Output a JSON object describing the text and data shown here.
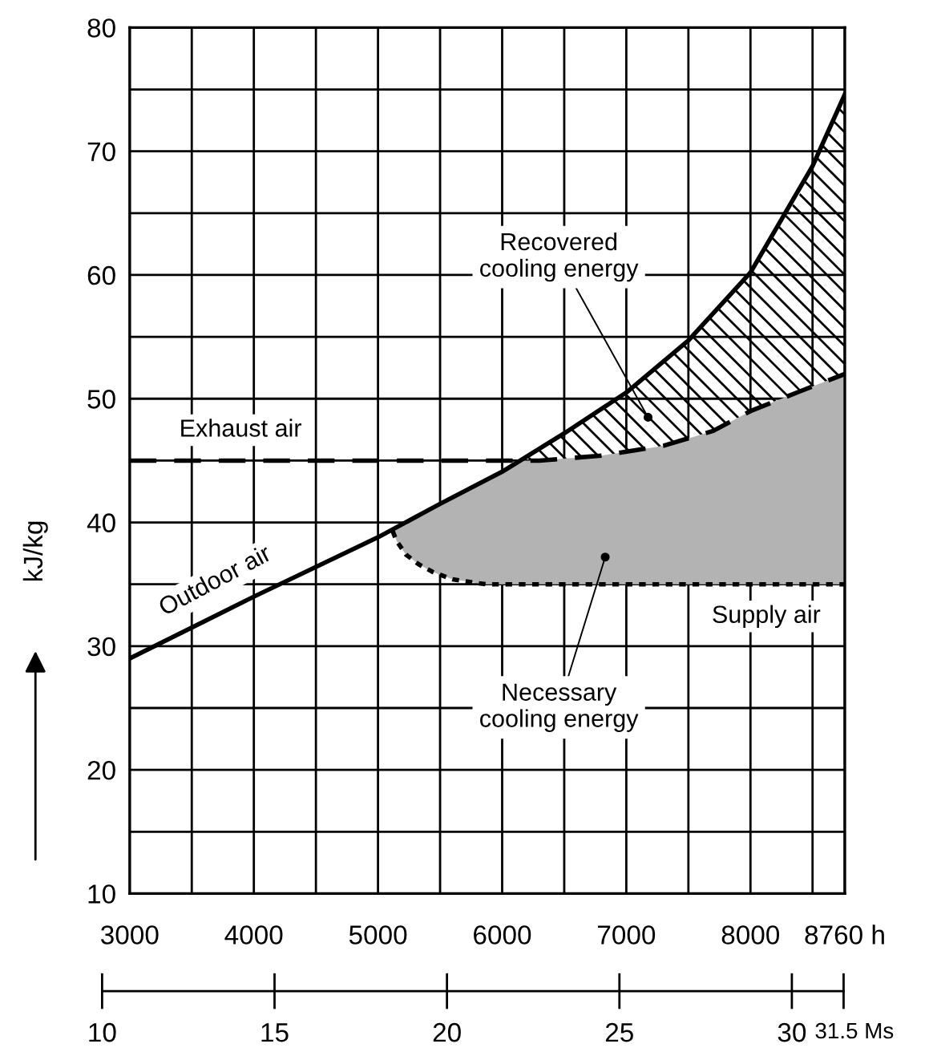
{
  "chart_data": {
    "type": "line",
    "ylabel": "kJ/kg",
    "xlim": [
      3000,
      8760
    ],
    "ylim": [
      10,
      80
    ],
    "xticks": [
      3000,
      {
        "value": 3500,
        "label": null
      },
      4000,
      {
        "value": 4500,
        "label": null
      },
      5000,
      {
        "value": 5500,
        "label": null
      },
      6000,
      {
        "value": 6500,
        "label": null
      },
      7000,
      {
        "value": 7500,
        "label": null
      },
      8000,
      {
        "value": 8500,
        "label": null
      },
      {
        "value": 8760,
        "label": "8760 h"
      }
    ],
    "yticks": [
      10,
      {
        "value": 15,
        "label": null
      },
      20,
      {
        "value": 25,
        "label": null
      },
      30,
      {
        "value": 35,
        "label": null
      },
      40,
      {
        "value": 45,
        "label": null
      },
      50,
      {
        "value": 55,
        "label": null
      },
      60,
      {
        "value": 65,
        "label": null
      },
      70,
      {
        "value": 75,
        "label": null
      },
      80
    ],
    "x2lim": [
      10,
      31.5
    ],
    "x2ticks": [
      10,
      15,
      20,
      25,
      30,
      {
        "value": 31.5,
        "label": "31.5 Ms"
      }
    ],
    "grid": true,
    "series": [
      {
        "name": "Outdoor air",
        "color": "#000000",
        "line_style": "solid",
        "x": [
          3000,
          4000,
          5000,
          5500,
          6000,
          6500,
          7000,
          7500,
          8000,
          8250,
          8500,
          8760
        ],
        "values": [
          29.0,
          34.0,
          38.8,
          41.5,
          44.1,
          47.2,
          50.5,
          54.7,
          60.2,
          64.5,
          68.8,
          74.6
        ]
      },
      {
        "name": "Exhaust air",
        "color": "#000000",
        "line_style": "dashed",
        "x": [
          3000,
          6164,
          6300,
          6800,
          7300,
          7700,
          8000,
          8400,
          8760
        ],
        "values": [
          45.0,
          45.0,
          45.0,
          45.4,
          46.2,
          47.4,
          49.0,
          50.6,
          52.0
        ],
        "lower": [
          null,
          45.0,
          45.0,
          45.4,
          46.2,
          47.4,
          49.0,
          50.6,
          52.0
        ],
        "upper": [
          null,
          45.0,
          46.0,
          49.2,
          52.8,
          56.8,
          60.2,
          66.6,
          74.6
        ]
      },
      {
        "name": "Supply air",
        "color": "#000000",
        "line_style": "dotted",
        "x": [
          5118,
          5150,
          5225,
          5330,
          5440,
          5600,
          5870,
          6164,
          6300,
          6800,
          7300,
          7700,
          8000,
          8400,
          8760
        ],
        "values": [
          39.3,
          38.5,
          37.4,
          36.6,
          36.0,
          35.4,
          35.0,
          35.0,
          35.0,
          35.0,
          35.0,
          35.0,
          35.0,
          35.0,
          35.0
        ],
        "lower": [
          39.3,
          38.5,
          37.4,
          36.6,
          36.0,
          35.4,
          35.0,
          35.0,
          35.0,
          35.0,
          35.0,
          35.0,
          35.0,
          35.0,
          35.0
        ],
        "upper": [
          39.3,
          39.5,
          39.9,
          40.4,
          41.0,
          41.9,
          43.3,
          45.0,
          45.0,
          45.4,
          46.2,
          47.4,
          49.0,
          50.6,
          52.0
        ]
      }
    ],
    "annotations": [
      {
        "text": "Recovered\ncooling energy",
        "x": 7175,
        "y": 48.5
      },
      {
        "text": "Necessary\ncooling energy",
        "x": 6830,
        "y": 37.2
      }
    ]
  }
}
